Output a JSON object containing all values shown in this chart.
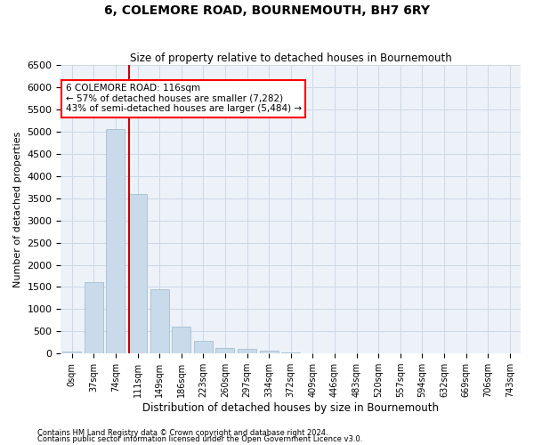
{
  "title": "6, COLEMORE ROAD, BOURNEMOUTH, BH7 6RY",
  "subtitle": "Size of property relative to detached houses in Bournemouth",
  "xlabel": "Distribution of detached houses by size in Bournemouth",
  "ylabel": "Number of detached properties",
  "footnote1": "Contains HM Land Registry data © Crown copyright and database right 2024.",
  "footnote2": "Contains public sector information licensed under the Open Government Licence v3.0.",
  "bar_color": "#c9daea",
  "bar_edge_color": "#9ab8cc",
  "grid_color": "#cdd8e8",
  "background_color": "#edf2f8",
  "annotation_line1": "6 COLEMORE ROAD: 116sqm",
  "annotation_line2": "← 57% of detached houses are smaller (7,282)",
  "annotation_line3": "43% of semi-detached houses are larger (5,484) →",
  "vline_color": "#cc0000",
  "vline_bin": 3,
  "bar_heights": [
    50,
    1600,
    5050,
    3600,
    1450,
    600,
    280,
    130,
    100,
    60,
    20,
    10,
    5,
    3,
    2,
    1,
    1,
    0,
    0,
    0,
    0
  ],
  "ylim": [
    0,
    6500
  ],
  "yticks": [
    0,
    500,
    1000,
    1500,
    2000,
    2500,
    3000,
    3500,
    4000,
    4500,
    5000,
    5500,
    6000,
    6500
  ],
  "tick_labels": [
    "0sqm",
    "37sqm",
    "74sqm",
    "111sqm",
    "149sqm",
    "186sqm",
    "223sqm",
    "260sqm",
    "297sqm",
    "334sqm",
    "372sqm",
    "409sqm",
    "446sqm",
    "483sqm",
    "520sqm",
    "557sqm",
    "594sqm",
    "632sqm",
    "669sqm",
    "706sqm",
    "743sqm"
  ],
  "n_bars": 21
}
